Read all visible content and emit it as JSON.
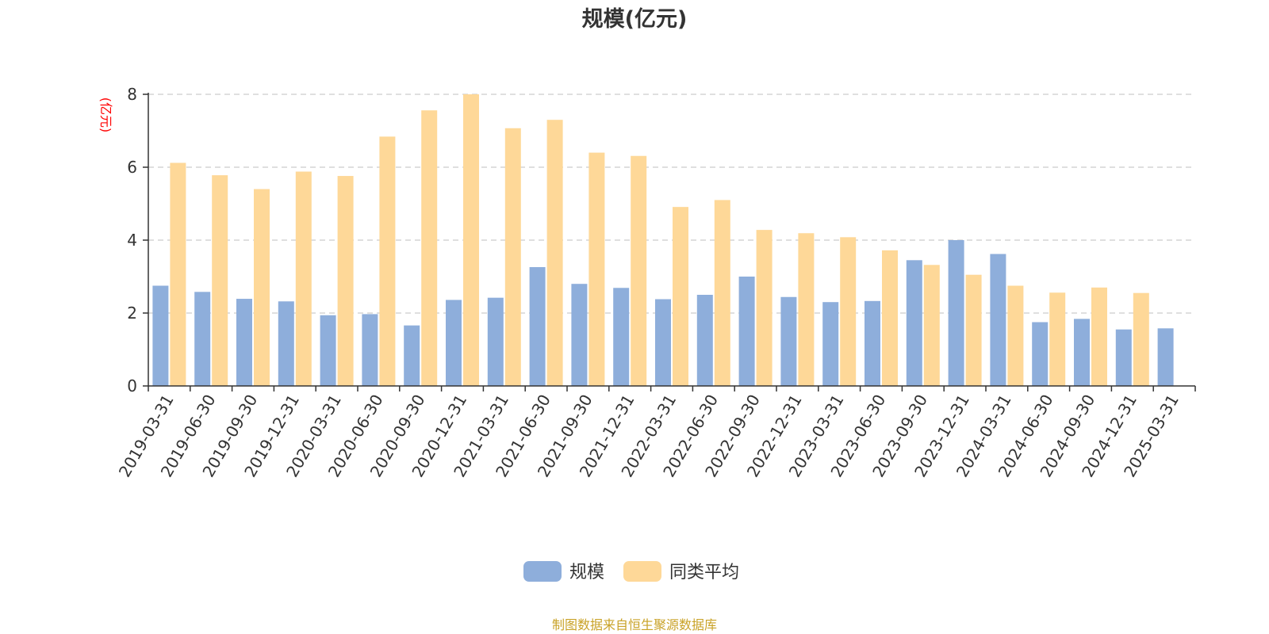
{
  "chart_data": {
    "type": "bar",
    "title": "规模(亿元)",
    "ylabel": "(亿元)",
    "ylim": [
      0,
      8
    ],
    "yticks": [
      "0",
      "2",
      "4",
      "6",
      "8"
    ],
    "grid": true,
    "legend_position": "bottom",
    "categories": [
      "2019-03-31",
      "2019-06-30",
      "2019-09-30",
      "2019-12-31",
      "2020-03-31",
      "2020-06-30",
      "2020-09-30",
      "2020-12-31",
      "2021-03-31",
      "2021-06-30",
      "2021-09-30",
      "2021-12-31",
      "2022-03-31",
      "2022-06-30",
      "2022-09-30",
      "2022-12-31",
      "2023-03-31",
      "2023-06-30",
      "2023-09-30",
      "2023-12-31",
      "2024-03-31",
      "2024-06-30",
      "2024-09-30",
      "2024-12-31",
      "2025-03-31"
    ],
    "series": [
      {
        "name": "规模",
        "color": "#8eaedb",
        "values": [
          2.75,
          2.58,
          2.39,
          2.32,
          1.94,
          1.97,
          1.66,
          2.36,
          2.42,
          3.26,
          2.8,
          2.69,
          2.38,
          2.5,
          3.0,
          2.44,
          2.3,
          2.33,
          3.45,
          4.0,
          3.62,
          1.75,
          1.84,
          1.55,
          1.58
        ]
      },
      {
        "name": "同类平均",
        "color": "#fed898",
        "values": [
          6.12,
          5.78,
          5.4,
          5.88,
          5.76,
          6.84,
          7.56,
          8.0,
          7.07,
          7.3,
          6.4,
          6.31,
          4.91,
          5.1,
          4.28,
          4.19,
          4.08,
          3.72,
          3.32,
          3.05,
          2.75,
          2.56,
          2.7,
          2.55,
          null
        ]
      }
    ]
  },
  "source_note": "制图数据来自恒生聚源数据库",
  "colors": {
    "axis": "#333333",
    "grid": "#cccccc",
    "unit": "#ff0000",
    "source": "#c9a227"
  }
}
